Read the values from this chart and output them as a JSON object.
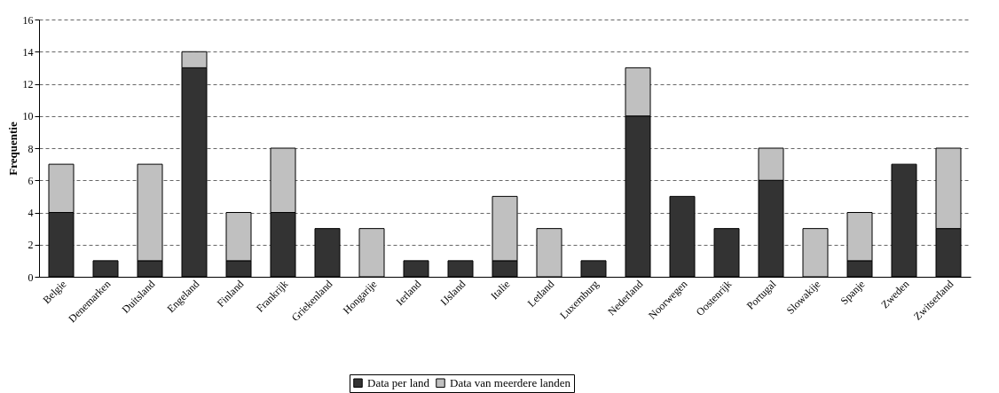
{
  "chart_data": {
    "type": "bar",
    "stacked": true,
    "ylabel": "Frequentie",
    "categories": [
      "Belgie",
      "Denemarken",
      "Duitsland",
      "Engeland",
      "Finland",
      "Frankrijk",
      "Griekenland",
      "Hongarije",
      "Ierland",
      "IJsland",
      "Italie",
      "Letland",
      "Luxemburg",
      "Nederland",
      "Noorwegen",
      "Oostenrijk",
      "Portugal",
      "Slowakije",
      "Spanje",
      "Zweden",
      "Zwitserland"
    ],
    "series": [
      {
        "name": "Data per land",
        "color": "#333333",
        "values": [
          4,
          1,
          1,
          13,
          1,
          4,
          3,
          0,
          1,
          1,
          1,
          0,
          1,
          10,
          5,
          3,
          6,
          0,
          1,
          7,
          3
        ]
      },
      {
        "name": "Data van meerdere landen",
        "color": "#c0c0c0",
        "values": [
          3,
          0,
          6,
          1,
          3,
          4,
          0,
          3,
          0,
          0,
          4,
          3,
          0,
          3,
          0,
          0,
          2,
          3,
          3,
          0,
          5
        ]
      }
    ],
    "ylim": [
      0,
      16
    ],
    "yticks": [
      0,
      2,
      4,
      6,
      8,
      10,
      12,
      14,
      16
    ],
    "grid": "y",
    "legend": "bottom"
  }
}
